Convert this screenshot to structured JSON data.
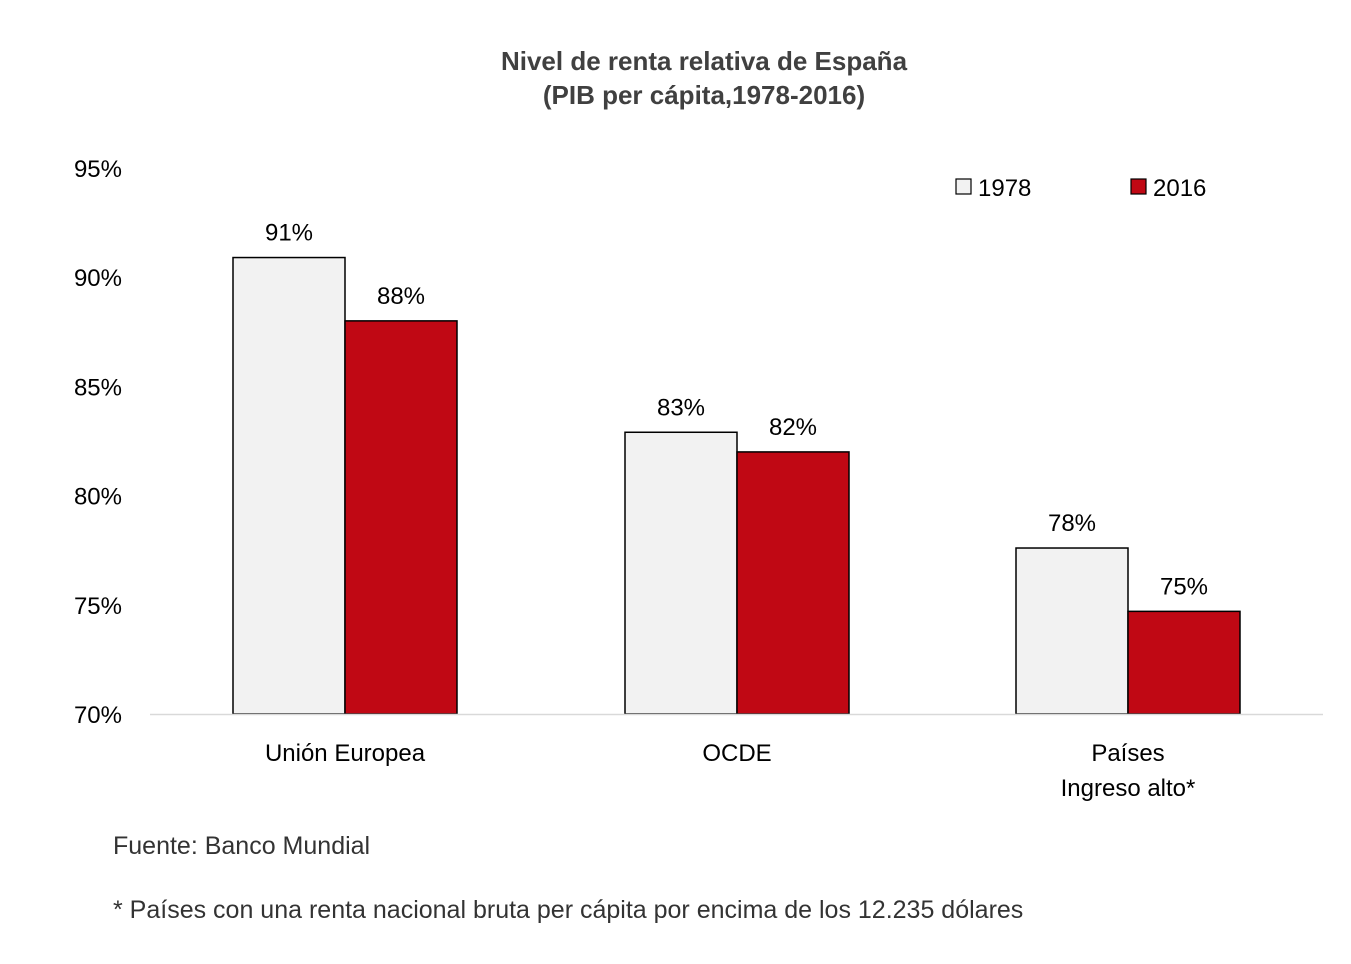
{
  "chart_data": {
    "type": "bar",
    "title": "Nivel de renta relativa de España",
    "subtitle": "(PIB per cápita,1978-2016)",
    "categories": [
      "Unión Europea",
      "OCDE",
      "Países Ingreso alto*"
    ],
    "category_lines": [
      [
        "Unión Europea"
      ],
      [
        "OCDE"
      ],
      [
        "Países",
        "Ingreso alto*"
      ]
    ],
    "series": [
      {
        "name": "1978",
        "color": "#f2f2f2",
        "values": [
          90.9,
          82.9,
          77.6
        ],
        "labels": [
          "91%",
          "83%",
          "78%"
        ]
      },
      {
        "name": "2016",
        "color": "#c00814",
        "values": [
          88.0,
          82.0,
          74.7
        ],
        "labels": [
          "88%",
          "82%",
          "75%"
        ]
      }
    ],
    "ylim": [
      70,
      95
    ],
    "yticks": [
      "70%",
      "75%",
      "80%",
      "85%",
      "90%",
      "95%"
    ],
    "ytick_values": [
      70,
      75,
      80,
      85,
      90,
      95
    ],
    "grid": false,
    "legend_placement": "top-right"
  },
  "notes": {
    "source": "Fuente: Banco Mundial",
    "footnote": "* Países con una renta nacional bruta per cápita por encima de los 12.235 dólares"
  }
}
